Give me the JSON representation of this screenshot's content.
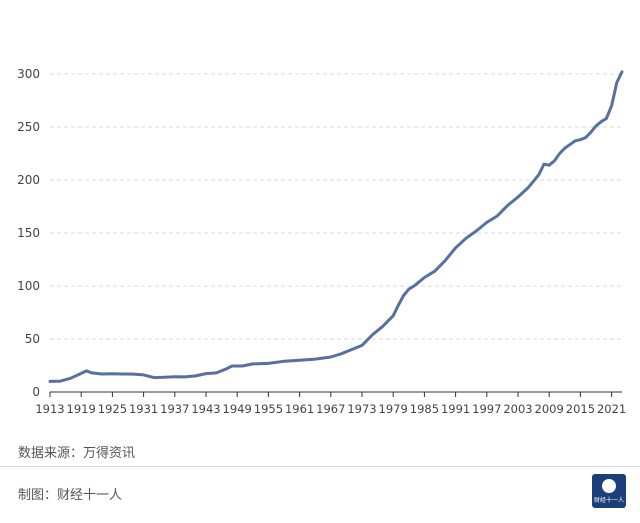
{
  "source_label": "数据来源：万得资讯",
  "credit_label": "制图：财经十一人",
  "logo_text": "财经十一人",
  "colors": {
    "line": "#5870a0",
    "grid": "#d8d8d8",
    "axis": "#333333",
    "text": "#444444"
  },
  "chart_data": {
    "type": "line",
    "title": "",
    "xlabel": "",
    "ylabel": "",
    "xlim": [
      1913,
      2023
    ],
    "ylim": [
      0,
      300
    ],
    "grid": true,
    "x_ticks": [
      "1913",
      "1919",
      "1925",
      "1931",
      "1937",
      "1943",
      "1949",
      "1955",
      "1961",
      "1967",
      "1973",
      "1979",
      "1985",
      "1991",
      "1997",
      "2003",
      "2009",
      "2015",
      "2021"
    ],
    "y_ticks": [
      "0",
      "50",
      "100",
      "150",
      "200",
      "250",
      "300"
    ],
    "series": [
      {
        "name": "",
        "x": [
          1913,
          1915,
          1917,
          1919,
          1920,
          1921,
          1923,
          1925,
          1927,
          1929,
          1931,
          1933,
          1935,
          1937,
          1939,
          1941,
          1943,
          1945,
          1947,
          1948,
          1950,
          1952,
          1955,
          1958,
          1961,
          1964,
          1967,
          1969,
          1971,
          1973,
          1975,
          1977,
          1979,
          1980,
          1981,
          1982,
          1983,
          1984,
          1985,
          1987,
          1989,
          1991,
          1993,
          1995,
          1997,
          1999,
          2001,
          2003,
          2005,
          2007,
          2008,
          2009,
          2010,
          2011,
          2012,
          2014,
          2015,
          2016,
          2017,
          2018,
          2019,
          2020,
          2021,
          2022,
          2023
        ],
        "y": [
          10,
          10.3,
          13,
          17.5,
          20,
          18,
          17,
          17.3,
          17,
          16.9,
          16.1,
          13.6,
          14,
          14.4,
          14.2,
          15.2,
          17.4,
          18,
          22,
          24.5,
          24.5,
          26.5,
          27,
          29,
          29.9,
          31,
          33,
          36,
          40,
          44,
          54,
          62,
          72,
          82,
          91,
          97,
          100,
          104,
          108,
          114,
          124,
          136,
          145,
          152,
          160,
          166,
          176,
          184,
          193,
          205,
          215,
          214,
          218,
          225,
          230,
          237,
          238,
          240,
          245,
          251,
          255,
          258,
          270,
          292,
          302
        ]
      }
    ]
  }
}
